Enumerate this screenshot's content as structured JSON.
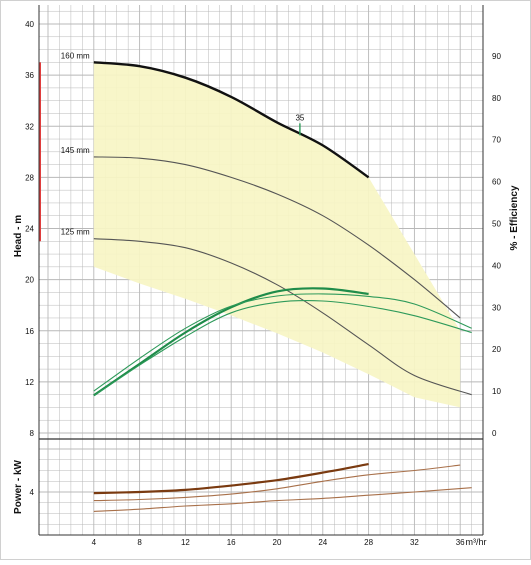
{
  "chart_data": [
    {
      "type": "line",
      "name": "head_efficiency",
      "xlabel": "",
      "ylabel": "Head - m",
      "y2label": "% - Efficiency",
      "xlim": [
        0,
        38
      ],
      "ylim": [
        8,
        40
      ],
      "y2lim": [
        0,
        95
      ],
      "x_ticks": [
        "4",
        "8",
        "12",
        "16",
        "20",
        "24",
        "28",
        "32",
        "36"
      ],
      "y_ticks": [
        "8",
        "12",
        "16",
        "20",
        "24",
        "28",
        "32",
        "36",
        "40"
      ],
      "y2_ticks": [
        "0",
        "10",
        "20",
        "30",
        "40",
        "50",
        "60",
        "70",
        "80",
        "90"
      ],
      "grid": true,
      "colors": {
        "grid": "#b8b8b8",
        "frame": "#333333",
        "envelope": "#f7f5c4",
        "head_main": "#111111",
        "head": "#555555",
        "efficiency": "#2e9a5a",
        "efficiency_main": "#1f8c4a",
        "marker": "#2a9a58",
        "range_bar": "#e03a3a"
      },
      "head_curves": [
        {
          "label": "160 mm",
          "emphasis": true,
          "x": [
            4,
            8,
            12,
            16,
            20,
            24,
            28
          ],
          "y": [
            37.0,
            36.7,
            35.8,
            34.3,
            32.3,
            30.5,
            28.0
          ]
        },
        {
          "label": "145 mm",
          "emphasis": false,
          "x": [
            4,
            8,
            12,
            16,
            20,
            24,
            28,
            32,
            36
          ],
          "y": [
            29.6,
            29.5,
            29.0,
            28.0,
            26.7,
            25.0,
            22.7,
            20.0,
            17.0
          ]
        },
        {
          "label": "125 mm",
          "emphasis": false,
          "x": [
            4,
            8,
            12,
            16,
            20,
            24,
            28,
            32,
            37
          ],
          "y": [
            23.2,
            23.0,
            22.5,
            21.3,
            19.6,
            17.4,
            14.9,
            12.5,
            11.0
          ]
        }
      ],
      "efficiency_curves": [
        {
          "emphasis": true,
          "x": [
            4,
            8,
            12,
            16,
            20,
            24,
            28
          ],
          "y": [
            9.0,
            16.5,
            24.0,
            30.0,
            33.8,
            34.5,
            33.2
          ]
        },
        {
          "emphasis": false,
          "x": [
            4,
            8,
            12,
            16,
            20,
            24,
            28,
            32,
            37
          ],
          "y": [
            10.0,
            17.8,
            25.0,
            30.3,
            32.7,
            33.2,
            32.6,
            30.8,
            25.0
          ]
        },
        {
          "emphasis": false,
          "x": [
            4,
            8,
            12,
            16,
            20,
            24,
            28,
            32,
            37
          ],
          "y": [
            8.9,
            16.2,
            23.0,
            28.7,
            31.2,
            31.5,
            30.2,
            28.0,
            24.0
          ]
        }
      ],
      "envelope": {
        "x": [
          4,
          8,
          12,
          16,
          20,
          24,
          28,
          32,
          36,
          36,
          32,
          28,
          24,
          20,
          16,
          12,
          8,
          4
        ],
        "y": [
          37.0,
          36.7,
          35.8,
          34.3,
          32.3,
          30.5,
          28.0,
          22.0,
          16.0,
          10.0,
          10.8,
          12.6,
          14.3,
          15.8,
          17.2,
          18.5,
          19.7,
          21.0
        ]
      },
      "markers": [
        {
          "label": "35",
          "x": 22,
          "y": 31.6
        }
      ],
      "range_bar": {
        "x": -0.7,
        "y_from": 23.0,
        "y_to": 37.0
      }
    },
    {
      "type": "line",
      "name": "power",
      "xlabel": "m³/hr",
      "ylabel": "Power - kW",
      "xlim": [
        0,
        38
      ],
      "ylim": [
        0,
        8
      ],
      "x_ticks": [
        "4",
        "8",
        "12",
        "16",
        "20",
        "24",
        "28",
        "32",
        "36"
      ],
      "y_ticks": [
        "4"
      ],
      "grid": true,
      "colors": {
        "power_main": "#7a3a10",
        "power": "#a8704a"
      },
      "power_curves": [
        {
          "emphasis": true,
          "x": [
            4,
            8,
            12,
            16,
            20,
            24,
            28
          ],
          "y": [
            3.9,
            4.0,
            4.2,
            4.6,
            5.1,
            5.8,
            6.6
          ]
        },
        {
          "emphasis": false,
          "x": [
            4,
            8,
            12,
            16,
            20,
            24,
            28,
            32,
            36
          ],
          "y": [
            3.2,
            3.3,
            3.5,
            3.8,
            4.3,
            5.0,
            5.6,
            6.0,
            6.5
          ]
        },
        {
          "emphasis": false,
          "x": [
            4,
            8,
            12,
            16,
            20,
            24,
            28,
            32,
            37
          ],
          "y": [
            2.2,
            2.4,
            2.7,
            2.9,
            3.2,
            3.4,
            3.7,
            4.0,
            4.4
          ]
        }
      ]
    }
  ]
}
